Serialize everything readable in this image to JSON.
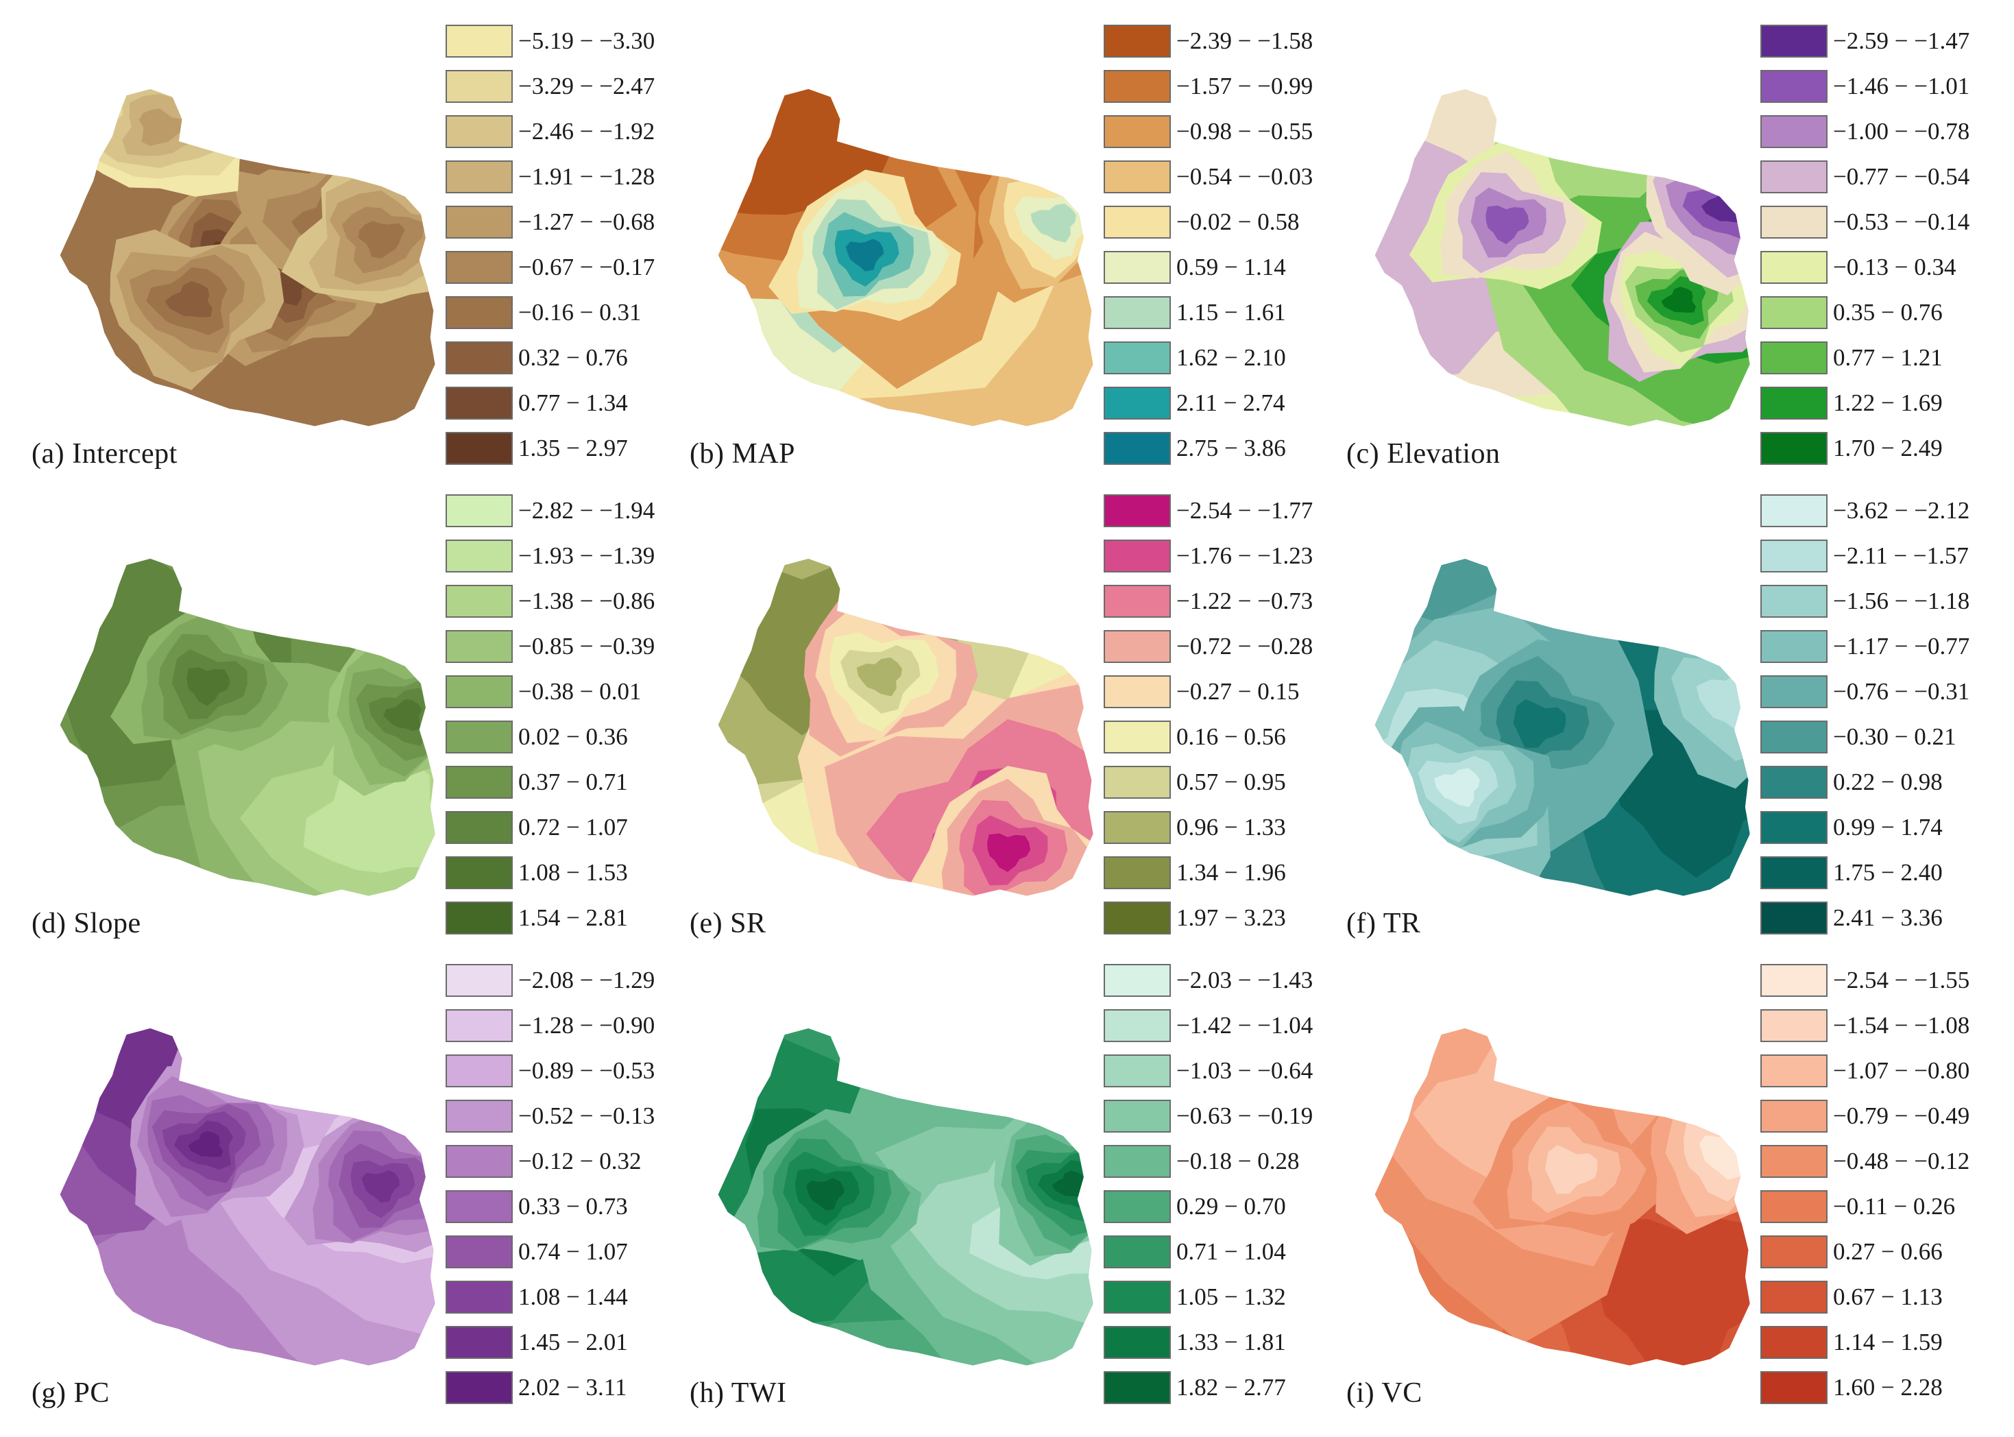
{
  "panels": [
    {
      "id": "a",
      "label": "(a) Intercept",
      "icon": "terrain-raster-icon",
      "legend": [
        {
          "range": "−5.19 − −3.30",
          "color": "#f1e8a9"
        },
        {
          "range": "−3.29 − −2.47",
          "color": "#e6d79b"
        },
        {
          "range": "−2.46 − −1.92",
          "color": "#d8c48a"
        },
        {
          "range": "−1.91 − −1.28",
          "color": "#cbb07b"
        },
        {
          "range": "−1.27 − −0.68",
          "color": "#bc9b69"
        },
        {
          "range": "−0.67 − −0.17",
          "color": "#ad8759"
        },
        {
          "range": "−0.16 − 0.31",
          "color": "#9d734a"
        },
        {
          "range": "0.32 − 0.76",
          "color": "#8b5f3d"
        },
        {
          "range": "0.77 − 1.34",
          "color": "#774b31"
        },
        {
          "range": "1.35 − 2.97",
          "color": "#643a25"
        }
      ]
    },
    {
      "id": "b",
      "label": "(b) MAP",
      "icon": "terrain-raster-icon",
      "legend": [
        {
          "range": "−2.39 − −1.58",
          "color": "#b4541b"
        },
        {
          "range": "−1.57 − −0.99",
          "color": "#cb7635"
        },
        {
          "range": "−0.98 − −0.55",
          "color": "#dd9a54"
        },
        {
          "range": "−0.54 − −0.03",
          "color": "#eabf7b"
        },
        {
          "range": "−0.02 − 0.58",
          "color": "#f6e3a3"
        },
        {
          "range": "0.59 − 1.14",
          "color": "#e8efc0"
        },
        {
          "range": "1.15 − 1.61",
          "color": "#b3dcbf"
        },
        {
          "range": "1.62 − 2.10",
          "color": "#6bbfb0"
        },
        {
          "range": "2.11 − 2.74",
          "color": "#1ea0a2"
        },
        {
          "range": "2.75 − 3.86",
          "color": "#0b7a8e"
        }
      ]
    },
    {
      "id": "c",
      "label": "(c) Elevation",
      "icon": "terrain-raster-icon",
      "legend": [
        {
          "range": "−2.59 − −1.47",
          "color": "#5e2a8f"
        },
        {
          "range": "−1.46 − −1.01",
          "color": "#8c55b3"
        },
        {
          "range": "−1.00 − −0.78",
          "color": "#b384c4"
        },
        {
          "range": "−0.77 − −0.54",
          "color": "#d4b4d1"
        },
        {
          "range": "−0.53 − −0.14",
          "color": "#efe1c6"
        },
        {
          "range": "−0.13 − 0.34",
          "color": "#e4f0a9"
        },
        {
          "range": "0.35 − 0.76",
          "color": "#a8d87e"
        },
        {
          "range": "0.77 − 1.21",
          "color": "#5fba4a"
        },
        {
          "range": "1.22 − 1.69",
          "color": "#1f9a2c"
        },
        {
          "range": "1.70 − 2.49",
          "color": "#05761c"
        }
      ]
    },
    {
      "id": "d",
      "label": "(d) Slope",
      "icon": "terrain-raster-icon",
      "legend": [
        {
          "range": "−2.82 − −1.94",
          "color": "#d2f0b6"
        },
        {
          "range": "−1.93 − −1.39",
          "color": "#c1e39d"
        },
        {
          "range": "−1.38 − −0.86",
          "color": "#b0d58a"
        },
        {
          "range": "−0.85 − −0.39",
          "color": "#9ec57b"
        },
        {
          "range": "−0.38 − 0.01",
          "color": "#8eb66b"
        },
        {
          "range": "0.02 − 0.36",
          "color": "#7fa65d"
        },
        {
          "range": "0.37 − 0.71",
          "color": "#6f954d"
        },
        {
          "range": "0.72 − 1.07",
          "color": "#5f853f"
        },
        {
          "range": "1.08 − 1.53",
          "color": "#517632"
        },
        {
          "range": "1.54 − 2.81",
          "color": "#446826"
        }
      ]
    },
    {
      "id": "e",
      "label": "(e) SR",
      "icon": "terrain-raster-icon",
      "legend": [
        {
          "range": "−2.54 − −1.77",
          "color": "#be1379"
        },
        {
          "range": "−1.76 − −1.23",
          "color": "#d74b8c"
        },
        {
          "range": "−1.22 − −0.73",
          "color": "#e87b95"
        },
        {
          "range": "−0.72 − −0.28",
          "color": "#f0ab9f"
        },
        {
          "range": "−0.27 − 0.15",
          "color": "#f9dcaf"
        },
        {
          "range": "0.16 − 0.56",
          "color": "#f1eeb1"
        },
        {
          "range": "0.57 − 0.95",
          "color": "#d3d496"
        },
        {
          "range": "0.96 − 1.33",
          "color": "#adb36b"
        },
        {
          "range": "1.34 − 1.96",
          "color": "#879248"
        },
        {
          "range": "1.97 − 3.23",
          "color": "#627128"
        }
      ]
    },
    {
      "id": "f",
      "label": "(f) TR",
      "icon": "terrain-raster-icon",
      "legend": [
        {
          "range": "−3.62 − −2.12",
          "color": "#d4efec"
        },
        {
          "range": "−2.11 − −1.57",
          "color": "#b8e1de"
        },
        {
          "range": "−1.56 − −1.18",
          "color": "#9dd1cc"
        },
        {
          "range": "−1.17 − −0.77",
          "color": "#82c0bb"
        },
        {
          "range": "−0.76 − −0.31",
          "color": "#67aeaa"
        },
        {
          "range": "−0.30 − 0.21",
          "color": "#4c9b97"
        },
        {
          "range": "0.22 − 0.98",
          "color": "#2d8681"
        },
        {
          "range": "0.99 − 1.74",
          "color": "#137570"
        },
        {
          "range": "1.75 − 2.40",
          "color": "#08635d"
        },
        {
          "range": "2.41 − 3.36",
          "color": "#04504a"
        }
      ]
    },
    {
      "id": "g",
      "label": "(g) PC",
      "icon": "terrain-raster-icon",
      "legend": [
        {
          "range": "−2.08 − −1.29",
          "color": "#ecdcf0"
        },
        {
          "range": "−1.28 − −0.90",
          "color": "#e0c5e8"
        },
        {
          "range": "−0.89 − −0.53",
          "color": "#d1acdc"
        },
        {
          "range": "−0.52 − −0.13",
          "color": "#c296cf"
        },
        {
          "range": "−0.12 − 0.32",
          "color": "#b27fc1"
        },
        {
          "range": "0.33 − 0.73",
          "color": "#a26ab4"
        },
        {
          "range": "0.74 − 1.07",
          "color": "#9356a6"
        },
        {
          "range": "1.08 − 1.44",
          "color": "#83439a"
        },
        {
          "range": "1.45 − 2.01",
          "color": "#73328c"
        },
        {
          "range": "2.02 − 3.11",
          "color": "#63227e"
        }
      ]
    },
    {
      "id": "h",
      "label": "(h) TWI",
      "icon": "terrain-raster-icon",
      "legend": [
        {
          "range": "−2.03 − −1.43",
          "color": "#d8f2e6"
        },
        {
          "range": "−1.42 − −1.04",
          "color": "#bfe6d4"
        },
        {
          "range": "−1.03 − −0.64",
          "color": "#a3d8bf"
        },
        {
          "range": "−0.63 − −0.19",
          "color": "#86c9a7"
        },
        {
          "range": "−0.18 − 0.28",
          "color": "#6bba92"
        },
        {
          "range": "0.29 − 0.70",
          "color": "#4eaa7b"
        },
        {
          "range": "0.71 − 1.04",
          "color": "#339a67"
        },
        {
          "range": "1.05 − 1.32",
          "color": "#1b8a55"
        },
        {
          "range": "1.33 − 1.81",
          "color": "#0d7a45"
        },
        {
          "range": "1.82 − 2.77",
          "color": "#066635"
        }
      ]
    },
    {
      "id": "i",
      "label": "(i) VC",
      "icon": "terrain-raster-icon",
      "legend": [
        {
          "range": "−2.54 − −1.55",
          "color": "#fde8d7"
        },
        {
          "range": "−1.54 − −1.08",
          "color": "#fcd3bd"
        },
        {
          "range": "−1.07 − −0.80",
          "color": "#f9bc9f"
        },
        {
          "range": "−0.79 − −0.49",
          "color": "#f5a583"
        },
        {
          "range": "−0.48 − −0.12",
          "color": "#ee9069"
        },
        {
          "range": "−0.11 − 0.26",
          "color": "#e77c55"
        },
        {
          "range": "0.27 − 0.66",
          "color": "#de6844"
        },
        {
          "range": "0.67 − 1.13",
          "color": "#d45636"
        },
        {
          "range": "1.14 − 1.59",
          "color": "#c9462a"
        },
        {
          "range": "1.60 − 2.28",
          "color": "#bd3720"
        }
      ]
    }
  ]
}
